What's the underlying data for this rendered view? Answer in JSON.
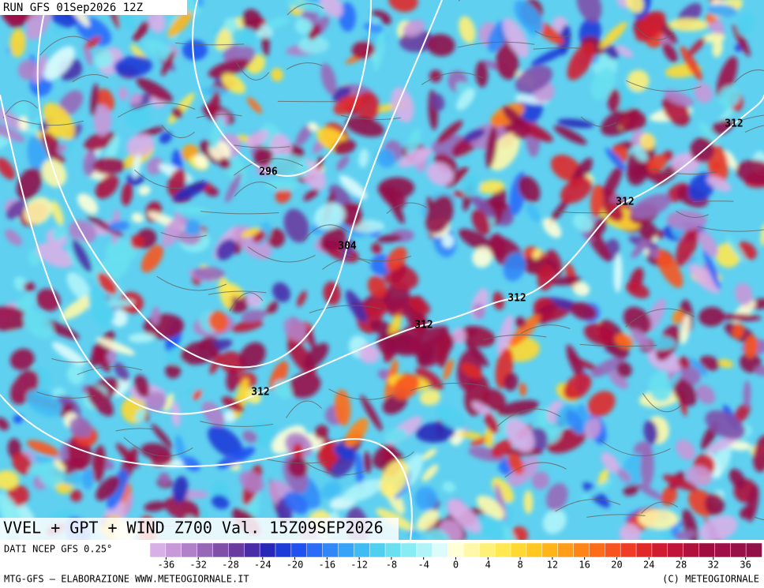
{
  "header": {
    "run": "RUN GFS 01Sep2026 12Z"
  },
  "map": {
    "title": "VVEL + GPT + WIND Z700 Val. 15Z09SEP2026",
    "contour_labels": [
      "296",
      "304",
      "312",
      "312",
      "312",
      "312",
      "312"
    ]
  },
  "colorbar": {
    "source": "DATI NCEP GFS 0.25°",
    "lim": [
      -38,
      38
    ],
    "ticks": [
      -36,
      -32,
      -28,
      -24,
      -20,
      -16,
      -12,
      -8,
      -4,
      0,
      4,
      8,
      12,
      16,
      20,
      24,
      28,
      32,
      36
    ],
    "colors": [
      "#d8b0e8",
      "#c898d8",
      "#b080c8",
      "#9868b8",
      "#8050a8",
      "#6a3ca0",
      "#4a2ca8",
      "#2828b8",
      "#1e3cd8",
      "#2050f0",
      "#2a6cf8",
      "#3088f8",
      "#38a4f8",
      "#40bcf4",
      "#50d0f0",
      "#68e0f0",
      "#88ecf4",
      "#b0f4f8",
      "#dcfcfc",
      "#ffffd8",
      "#fff8a8",
      "#fff078",
      "#ffe850",
      "#ffd830",
      "#ffc820",
      "#ffb418",
      "#ff9c18",
      "#ff8418",
      "#ff6c18",
      "#f85420",
      "#f03c24",
      "#e02828",
      "#d01c30",
      "#c01438",
      "#b0103c",
      "#a00c40",
      "#a01048",
      "#981048",
      "#901048"
    ]
  },
  "footer": {
    "left": "MTG-GFS – ELABORAZIONE WWW.METEOGIORNALE.IT",
    "right": "(C) METEOGIORNALE"
  }
}
